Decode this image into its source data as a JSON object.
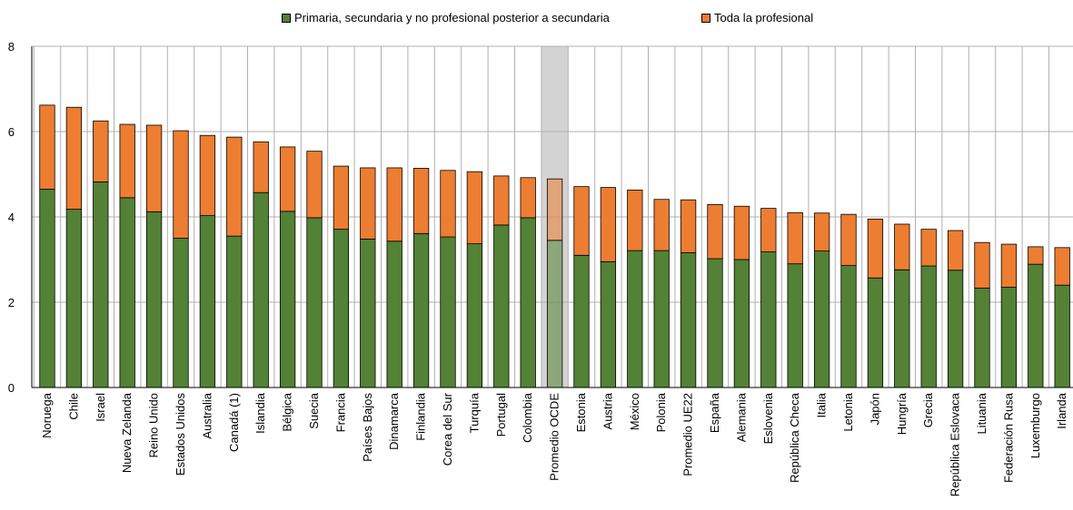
{
  "chart_data": {
    "type": "bar",
    "stacked": true,
    "categories": [
      "Noruega",
      "Chile",
      "Israel",
      "Nueva Zelanda",
      "Reino Unido",
      "Estados Unidos",
      "Australia",
      "Canadá (1)",
      "Islandia",
      "Bélgica",
      "Suecia",
      "Francia",
      "Países Bajos",
      "Dinamarca",
      "Finlandia",
      "Corea del Sur",
      "Turquía",
      "Portugal",
      "Colombia",
      "Promedio OCDE",
      "Estonia",
      "Austria",
      "México",
      "Polonia",
      "Promedio UE22",
      "España",
      "Alemania",
      "Eslovenia",
      "República Checa",
      "Italia",
      "Letonia",
      "Japón",
      "Hungría",
      "Grecia",
      "República Eslovaca",
      "Lituania",
      "Federación Rusa",
      "Luxemburgo",
      "Irlanda"
    ],
    "series": [
      {
        "name": "Primaria, secundaria y no profesional posterior a secundaria",
        "color": "#538135",
        "values": [
          4.65,
          4.18,
          4.82,
          4.45,
          4.12,
          3.5,
          4.03,
          3.55,
          4.57,
          4.13,
          3.98,
          3.71,
          3.48,
          3.43,
          3.61,
          3.53,
          3.37,
          3.81,
          3.98,
          3.45,
          3.1,
          2.95,
          3.21,
          3.21,
          3.16,
          3.02,
          3.0,
          3.18,
          2.9,
          3.2,
          2.86,
          2.57,
          2.76,
          2.85,
          2.75,
          2.33,
          2.35,
          2.89,
          2.4
        ]
      },
      {
        "name": "Toda la profesional",
        "color": "#ED7D31",
        "values": [
          1.97,
          2.39,
          1.43,
          1.72,
          2.03,
          2.52,
          1.88,
          2.32,
          1.19,
          1.51,
          1.56,
          1.48,
          1.67,
          1.72,
          1.53,
          1.56,
          1.69,
          1.15,
          0.94,
          1.44,
          1.61,
          1.74,
          1.42,
          1.2,
          1.24,
          1.27,
          1.25,
          1.02,
          1.2,
          0.89,
          1.2,
          1.38,
          1.07,
          0.86,
          0.93,
          1.07,
          1.01,
          0.41,
          0.88
        ]
      }
    ],
    "highlight_category": "Promedio OCDE",
    "highlight_color": "#D3D3D3",
    "ylim": [
      0,
      8
    ],
    "yticks": [
      0,
      2,
      4,
      6,
      8
    ],
    "grid": true,
    "legend_position": "top-center",
    "title": "",
    "xlabel": "",
    "ylabel": ""
  }
}
